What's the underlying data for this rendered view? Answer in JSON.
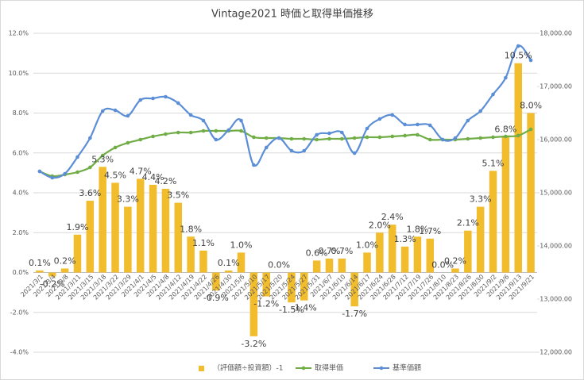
{
  "chart_data": {
    "type": "combo",
    "title": "Vintage2021 時価と取得単価推移",
    "categories": [
      "2021/3/1",
      "2021/3/4",
      "2021/3/8",
      "2021/3/11",
      "2021/3/15",
      "2021/3/18",
      "2021/3/22",
      "2021/3/29",
      "2021/4/1",
      "2021/4/5",
      "2021/4/8",
      "2021/4/12",
      "2021/4/19",
      "2021/4/22",
      "2021/4/26",
      "2021/4/30",
      "2021/5/6",
      "2021/5/10",
      "2021/5/17",
      "2021/5/20",
      "2021/5/24",
      "2021/5/27",
      "2021/5/31",
      "2021/6/7",
      "2021/6/10",
      "2021/6/14",
      "2021/6/17",
      "2021/6/24",
      "2021/6/28",
      "2021/7/12",
      "2021/7/19",
      "2021/7/26",
      "2021/8/10",
      "2021/8/23",
      "2021/8/26",
      "2021/8/30",
      "2021/9/2",
      "2021/9/6",
      "2021/9/13",
      "2021/9/21"
    ],
    "series": [
      {
        "name": "（評価額÷投資額）-1",
        "type": "bar",
        "color": "#f2bd2d",
        "values": [
          0.1,
          -0.2,
          0.2,
          1.9,
          3.6,
          5.3,
          4.5,
          3.3,
          4.7,
          4.4,
          4.2,
          3.5,
          1.8,
          1.1,
          -0.9,
          0.1,
          1.0,
          -3.2,
          -1.2,
          0.0,
          -1.5,
          -1.4,
          0.6,
          0.7,
          0.7,
          -1.7,
          1.0,
          2.0,
          2.4,
          1.3,
          1.8,
          1.7,
          0.0,
          0.2,
          2.1,
          3.3,
          5.1,
          6.8,
          10.5,
          8.0
        ],
        "value_labels": [
          "0.1%",
          "-0.2%",
          "0.2%",
          "1.9%",
          "3.6%",
          "5.3%",
          "4.5%",
          "3.3%",
          "4.7%",
          "4.4%",
          "4.2%",
          "3.5%",
          "1.8%",
          "1.1%",
          "-0.9%",
          "0.1%",
          "1.0%",
          "-3.2%",
          "-1.2%",
          "0.0%",
          "-1.5%",
          "-1.4%",
          "0.6%",
          "0.7%",
          "0.7%",
          "-1.7%",
          "1.0%",
          "2.0%",
          "2.4%",
          "1.3%",
          "1.8%",
          "1.7%",
          "0.0%",
          "0.2%",
          "2.1%",
          "3.3%",
          "5.1%",
          "6.8%",
          "10.5%",
          "8.0%"
        ]
      },
      {
        "name": "取得単価",
        "type": "line",
        "axis": "y2",
        "color": "#70ad47",
        "values": [
          15403,
          15313,
          15343,
          15388,
          15478,
          15701,
          15851,
          15940,
          16000,
          16060,
          16104,
          16134,
          16134,
          16164,
          16164,
          16164,
          16164,
          16045,
          16030,
          16030,
          16015,
          16015,
          16000,
          16015,
          16015,
          16030,
          16045,
          16045,
          16060,
          16075,
          16090,
          16000,
          16000,
          16000,
          16015,
          16030,
          16045,
          16060,
          16075,
          16194
        ]
      },
      {
        "name": "基準価額",
        "type": "line",
        "axis": "y2",
        "color": "#5b8ed6",
        "values": [
          15403,
          15284,
          15358,
          15672,
          16030,
          16537,
          16552,
          16448,
          16746,
          16776,
          16806,
          16687,
          16463,
          16358,
          16000,
          16179,
          16358,
          15522,
          15851,
          16030,
          15791,
          15791,
          16090,
          16119,
          16134,
          15746,
          16209,
          16388,
          16463,
          16284,
          16284,
          16269,
          16000,
          16030,
          16358,
          16537,
          16851,
          17164,
          17761,
          17493
        ]
      }
    ],
    "ylim": [
      -4,
      12
    ],
    "yticks": [
      {
        "value": -4,
        "label": "-4.0%"
      },
      {
        "value": -2,
        "label": "-2.0%"
      },
      {
        "value": 0,
        "label": "0.0%"
      },
      {
        "value": 2,
        "label": "2.0%"
      },
      {
        "value": 4,
        "label": "4.0%"
      },
      {
        "value": 6,
        "label": "6.0%"
      },
      {
        "value": 8,
        "label": "8.0%"
      },
      {
        "value": 10,
        "label": "10.0%"
      },
      {
        "value": 12,
        "label": "12.0%"
      }
    ],
    "y2lim": [
      12000,
      18000
    ],
    "y2ticks": [
      {
        "value": 12000,
        "label": "12,000.00"
      },
      {
        "value": 13000,
        "label": "13,000.00"
      },
      {
        "value": 14000,
        "label": "14,000.00"
      },
      {
        "value": 15000,
        "label": "15,000.00"
      },
      {
        "value": 16000,
        "label": "16,000.00"
      },
      {
        "value": 17000,
        "label": "17,000.00"
      },
      {
        "value": 18000,
        "label": "18,000.00"
      }
    ],
    "grid": true,
    "legend": "bottom"
  }
}
